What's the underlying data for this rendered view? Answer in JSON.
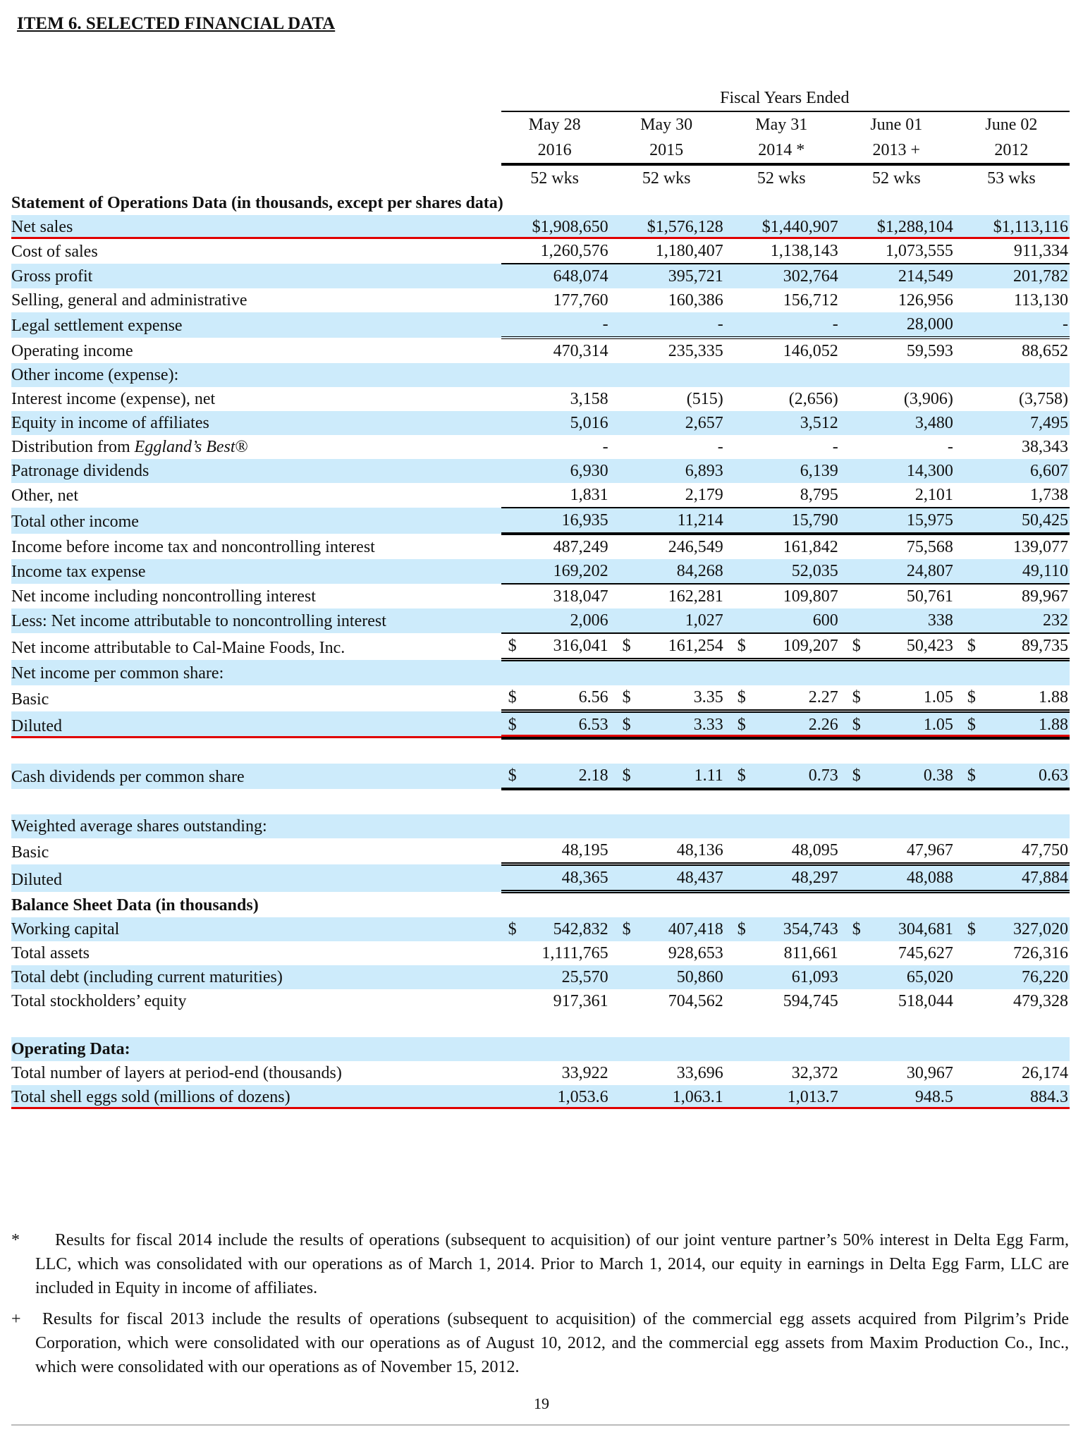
{
  "title": "ITEM 6.  SELECTED FINANCIAL DATA",
  "header": {
    "group_label": "Fiscal Years Ended",
    "months": [
      "May 28",
      "May 30",
      "May 31",
      "June 01",
      "June 02"
    ],
    "years": [
      "2016",
      "2015",
      "2014 *",
      "2013 +",
      "2012"
    ],
    "weeks": [
      "52 wks",
      "52 wks",
      "52 wks",
      "52 wks",
      "53 wks"
    ]
  },
  "rows": [
    {
      "label": "Statement of Operations Data (in thousands, except per shares data)",
      "values": []
    },
    {
      "label": "Net sales",
      "values": [
        "$1,908,650",
        "$1,576,128",
        "$1,440,907",
        "$1,288,104",
        "$1,113,116"
      ]
    },
    {
      "label": "Cost of sales",
      "values": [
        "1,260,576",
        "1,180,407",
        "1,138,143",
        "1,073,555",
        "911,334"
      ]
    },
    {
      "label": "Gross profit",
      "values": [
        "648,074",
        "395,721",
        "302,764",
        "214,549",
        "201,782"
      ]
    },
    {
      "label": "Selling, general and administrative",
      "values": [
        "177,760",
        "160,386",
        "156,712",
        "126,956",
        "113,130"
      ]
    },
    {
      "label": "Legal settlement expense",
      "values": [
        "-",
        "-",
        "-",
        "28,000",
        "-"
      ]
    },
    {
      "label": "Operating income",
      "values": [
        "470,314",
        "235,335",
        "146,052",
        "59,593",
        "88,652"
      ]
    },
    {
      "label": "Other income (expense):",
      "values": []
    },
    {
      "label": "Interest income (expense), net",
      "values": [
        "3,158",
        "(515)",
        "(2,656)",
        "(3,906)",
        "(3,758)"
      ]
    },
    {
      "label": "Equity in income of affiliates",
      "values": [
        "5,016",
        "2,657",
        "3,512",
        "3,480",
        "7,495"
      ]
    },
    {
      "label": "Distribution from ",
      "label_italic": "Eggland’s Best",
      "label_suffix": "®",
      "values": [
        "-",
        "-",
        "-",
        "-",
        "38,343"
      ]
    },
    {
      "label": "Patronage dividends",
      "values": [
        "6,930",
        "6,893",
        "6,139",
        "14,300",
        "6,607"
      ]
    },
    {
      "label": "Other, net",
      "values": [
        "1,831",
        "2,179",
        "8,795",
        "2,101",
        "1,738"
      ]
    },
    {
      "label": "Total other income",
      "values": [
        "16,935",
        "11,214",
        "15,790",
        "15,975",
        "50,425"
      ]
    },
    {
      "label": "Income before income tax and noncontrolling interest",
      "values": [
        "487,249",
        "246,549",
        "161,842",
        "75,568",
        "139,077"
      ]
    },
    {
      "label": "Income tax expense",
      "values": [
        "169,202",
        "84,268",
        "52,035",
        "24,807",
        "49,110"
      ]
    },
    {
      "label": "Net income including noncontrolling interest",
      "values": [
        "318,047",
        "162,281",
        "109,807",
        "50,761",
        "89,967"
      ]
    },
    {
      "label": "Less: Net income attributable to noncontrolling interest",
      "values": [
        "2,006",
        "1,027",
        "600",
        "338",
        "232"
      ]
    },
    {
      "label": "Net income attributable to Cal-Maine Foods, Inc.",
      "currency": "$",
      "values": [
        "316,041",
        "161,254",
        "109,207",
        "50,423",
        "89,735"
      ]
    },
    {
      "label": "Net income per common share:",
      "values": []
    },
    {
      "label": "Basic",
      "currency": "$",
      "values": [
        "6.56",
        "3.35",
        "2.27",
        "1.05",
        "1.88"
      ]
    },
    {
      "label": "Diluted",
      "currency": "$",
      "values": [
        "6.53",
        "3.33",
        "2.26",
        "1.05",
        "1.88"
      ]
    },
    {
      "label": "",
      "values": []
    },
    {
      "label": "Cash dividends per common share",
      "currency": "$",
      "values": [
        "2.18",
        "1.11",
        "0.73",
        "0.38",
        "0.63"
      ]
    },
    {
      "label": "",
      "values": []
    },
    {
      "label": "Weighted average shares outstanding:",
      "values": []
    },
    {
      "label": "Basic",
      "values": [
        "48,195",
        "48,136",
        "48,095",
        "47,967",
        "47,750"
      ]
    },
    {
      "label": "Diluted",
      "values": [
        "48,365",
        "48,437",
        "48,297",
        "48,088",
        "47,884"
      ]
    },
    {
      "label": "Balance Sheet Data (in thousands)",
      "values": []
    },
    {
      "label": "Working capital",
      "currency": "$",
      "values": [
        "542,832",
        "407,418",
        "354,743",
        "304,681",
        "327,020"
      ]
    },
    {
      "label": "Total assets",
      "values": [
        "1,111,765",
        "928,653",
        "811,661",
        "745,627",
        "726,316"
      ]
    },
    {
      "label": "Total debt (including current maturities)",
      "values": [
        "25,570",
        "50,860",
        "61,093",
        "65,020",
        "76,220"
      ]
    },
    {
      "label": "Total stockholders’ equity",
      "values": [
        "917,361",
        "704,562",
        "594,745",
        "518,044",
        "479,328"
      ]
    },
    {
      "label": "",
      "values": []
    },
    {
      "label": "Operating Data:",
      "values": []
    },
    {
      "label": "Total number of layers at period-end (thousands)",
      "values": [
        "33,922",
        "33,696",
        "32,372",
        "30,967",
        "26,174"
      ]
    },
    {
      "label": "Total shell eggs sold (millions of dozens)",
      "values": [
        "1,053.6",
        "1,063.1",
        "1,013.7",
        "948.5",
        "884.3"
      ]
    }
  ],
  "footnotes": [
    {
      "symbol": "*",
      "text": "Results for fiscal 2014 include the results of operations (subsequent to acquisition) of our joint venture partner’s 50% interest in Delta Egg Farm, LLC, which was consolidated with our operations as of March 1, 2014.  Prior to March 1, 2014, our equity in earnings in Delta Egg Farm, LLC are included in Equity in income of affiliates."
    },
    {
      "symbol": "+",
      "text": "Results for fiscal 2013 include the results of operations (subsequent to acquisition) of the commercial egg assets acquired from Pilgrim’s Pride Corporation, which were consolidated with our operations as of August 10, 2012, and the commercial egg assets from Maxim Production Co., Inc., which were consolidated with our operations as of November 15, 2012."
    }
  ],
  "page_number": "19",
  "colors": {
    "shade": "#cdebfb",
    "highlight_rule": "#e00000"
  }
}
